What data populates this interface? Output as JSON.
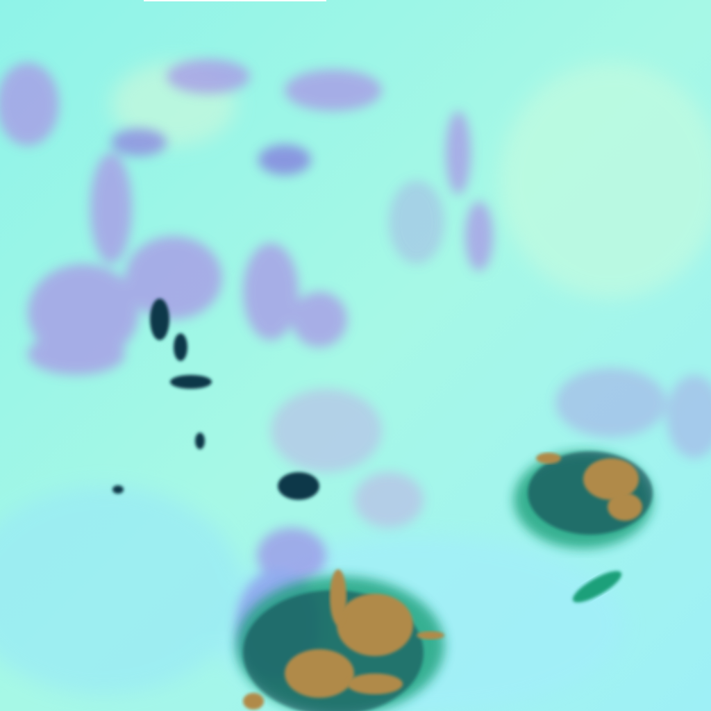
{
  "image": {
    "kind": "false-color satellite imagery",
    "colors": {
      "base": "#8ff7e6",
      "base_light": "#b8fbe8",
      "haze_blue": "#9fe8f8",
      "terrain_purple": "#a69ae6",
      "terrain_violet": "#8f8ae0",
      "cloud_brown": "#b08a48",
      "cloud_edge": "#1aa07a",
      "cloud_dark": "#103848"
    }
  }
}
